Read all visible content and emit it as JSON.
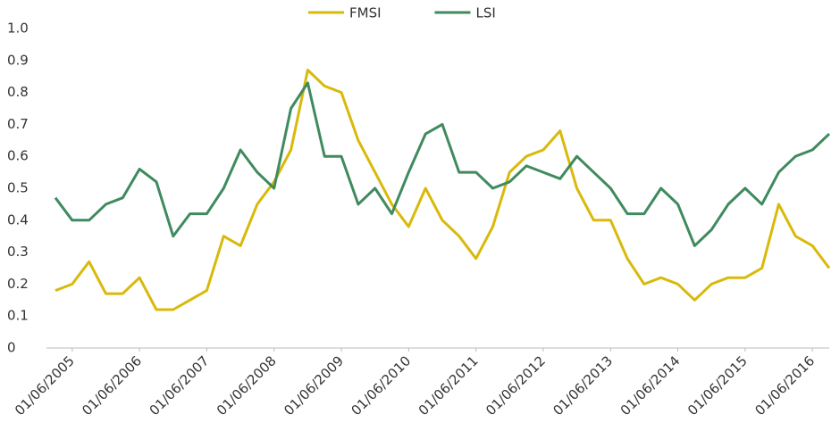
{
  "chart_data": {
    "type": "line",
    "x": [
      "01/03/2005",
      "01/06/2005",
      "01/09/2005",
      "01/12/2005",
      "01/03/2006",
      "01/06/2006",
      "01/09/2006",
      "01/12/2006",
      "01/03/2007",
      "01/06/2007",
      "01/09/2007",
      "01/12/2007",
      "01/03/2008",
      "01/06/2008",
      "01/09/2008",
      "01/12/2008",
      "01/03/2009",
      "01/06/2009",
      "01/09/2009",
      "01/12/2009",
      "01/03/2010",
      "01/06/2010",
      "01/09/2010",
      "01/12/2010",
      "01/03/2011",
      "01/06/2011",
      "01/09/2011",
      "01/12/2011",
      "01/03/2012",
      "01/06/2012",
      "01/09/2012",
      "01/12/2012",
      "01/03/2013",
      "01/06/2013",
      "01/09/2013",
      "01/12/2013",
      "01/03/2014",
      "01/06/2014",
      "01/09/2014",
      "01/12/2014",
      "01/03/2015",
      "01/06/2015",
      "01/09/2015",
      "01/12/2015",
      "01/03/2016",
      "01/06/2016",
      "01/09/2016"
    ],
    "series": [
      {
        "name": "FMSI",
        "color": "#d9b90a",
        "values": [
          0.18,
          0.2,
          0.27,
          0.17,
          0.17,
          0.22,
          0.12,
          0.12,
          0.15,
          0.18,
          0.35,
          0.32,
          0.45,
          0.52,
          0.62,
          0.87,
          0.82,
          0.8,
          0.65,
          0.55,
          0.45,
          0.38,
          0.5,
          0.4,
          0.35,
          0.28,
          0.38,
          0.55,
          0.6,
          0.62,
          0.68,
          0.5,
          0.4,
          0.4,
          0.28,
          0.2,
          0.22,
          0.2,
          0.15,
          0.2,
          0.22,
          0.22,
          0.25,
          0.45,
          0.35,
          0.32,
          0.25
        ]
      },
      {
        "name": "LSI",
        "color": "#3f8a5e",
        "values": [
          0.47,
          0.4,
          0.4,
          0.45,
          0.47,
          0.56,
          0.52,
          0.35,
          0.42,
          0.42,
          0.5,
          0.62,
          0.55,
          0.5,
          0.75,
          0.83,
          0.6,
          0.6,
          0.45,
          0.5,
          0.42,
          0.55,
          0.67,
          0.7,
          0.55,
          0.55,
          0.5,
          0.52,
          0.57,
          0.55,
          0.53,
          0.6,
          0.55,
          0.5,
          0.42,
          0.42,
          0.5,
          0.45,
          0.32,
          0.37,
          0.45,
          0.5,
          0.45,
          0.55,
          0.6,
          0.62,
          0.67
        ]
      }
    ],
    "xlim": [
      "01/03/2005",
      "01/09/2016"
    ],
    "xticks": [
      "01/06/2005",
      "01/06/2006",
      "01/06/2007",
      "01/06/2008",
      "01/06/2009",
      "01/06/2010",
      "01/06/2011",
      "01/06/2012",
      "01/06/2013",
      "01/06/2014",
      "01/06/2015",
      "01/06/2016"
    ],
    "ylim": [
      0,
      1
    ],
    "yticks": [
      0,
      0.1,
      0.2,
      0.3,
      0.4,
      0.5,
      0.6,
      0.7,
      0.8,
      0.9,
      {
        "value": 1,
        "label": "1.0"
      }
    ],
    "legend": "top"
  }
}
